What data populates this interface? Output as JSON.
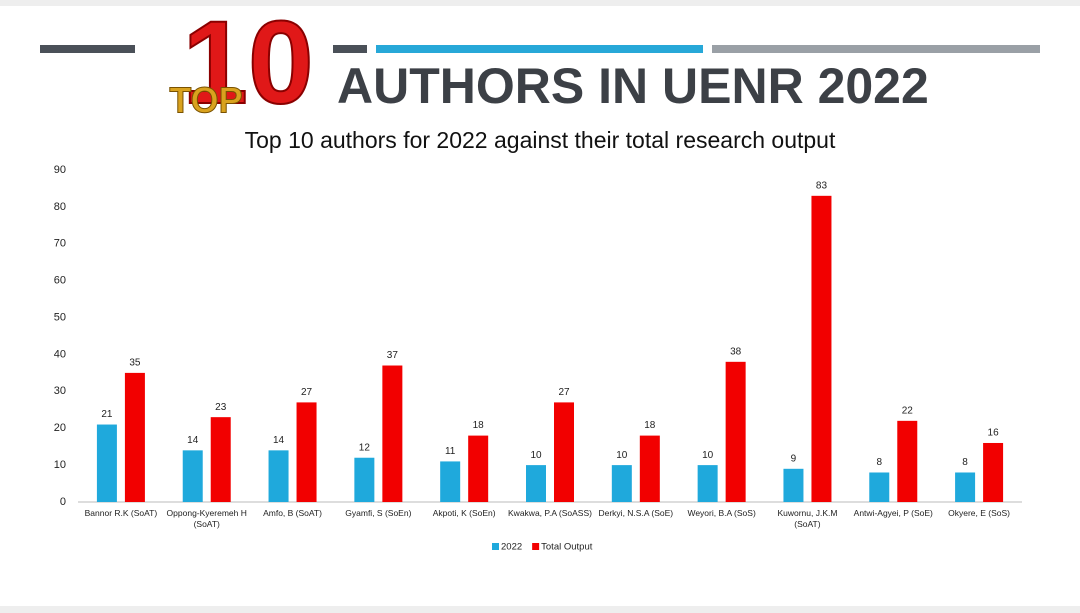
{
  "header": {
    "logo_number": "10",
    "logo_word": "TOP",
    "heading": "AUTHORS IN UENR 2022"
  },
  "chart_data": {
    "type": "bar",
    "title": "Top 10 authors for 2022 against their total research output",
    "categories": [
      "Bannor R.K (SoAT)",
      "Oppong-Kyeremeh H (SoAT)",
      "Amfo, B (SoAT)",
      "Gyamfi, S (SoEn)",
      "Akpoti, K (SoEn)",
      "Kwakwa, P.A (SoASS)",
      "Derkyi, N.S.A (SoE)",
      "Weyori, B.A (SoS)",
      "Kuwornu, J.K.M (SoAT)",
      "Antwi-Agyei, P (SoE)",
      "Okyere, E (SoS)"
    ],
    "series": [
      {
        "name": "2022",
        "color": "#1fa9dc",
        "values": [
          21,
          14,
          14,
          12,
          11,
          10,
          10,
          10,
          9,
          8,
          8
        ]
      },
      {
        "name": "Total Output",
        "color": "#f20000",
        "values": [
          35,
          23,
          27,
          37,
          18,
          27,
          18,
          38,
          83,
          22,
          16
        ]
      }
    ],
    "ylim": [
      0,
      90
    ],
    "yticks": [
      0,
      10,
      20,
      30,
      40,
      50,
      60,
      70,
      80,
      90
    ],
    "grid": false,
    "legend": "bottom"
  }
}
